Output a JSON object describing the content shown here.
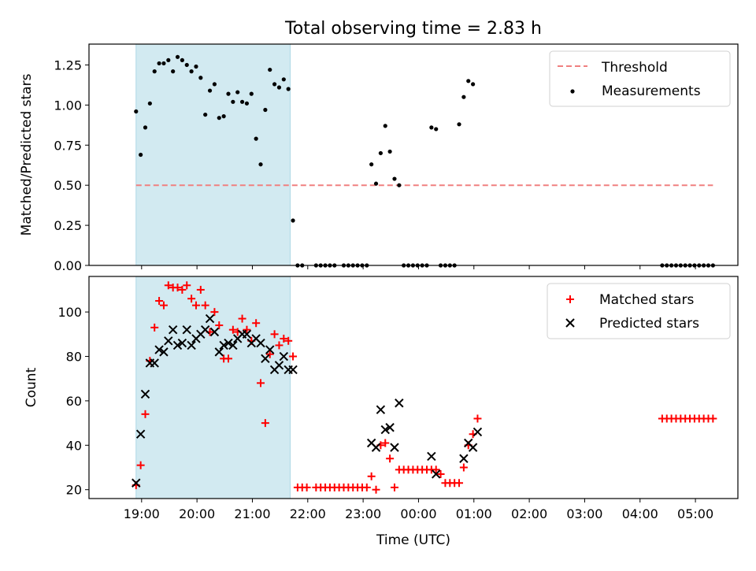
{
  "title": "Total observing time = 2.83 h",
  "colors": {
    "threshold": "#f08080",
    "matched": "#ff0000",
    "predicted": "#000000",
    "measurements": "#000000",
    "shade": "#add8e6"
  },
  "chart_data": [
    {
      "type": "scatter",
      "title": "Total observing time = 2.83 h",
      "ylabel": "Matched/Predicted stars",
      "xlim": [
        "18:03",
        "05:46"
      ],
      "ylim": [
        0,
        1.38
      ],
      "y_ticks": [
        "0.00",
        "0.25",
        "0.50",
        "0.75",
        "1.00",
        "1.25"
      ],
      "x_ticks": [
        "19:00",
        "20:00",
        "21:00",
        "22:00",
        "23:00",
        "00:00",
        "01:00",
        "02:00",
        "03:00",
        "04:00",
        "05:00"
      ],
      "shaded_interval": [
        "18:54",
        "21:41"
      ],
      "legend": {
        "position": "upper right",
        "entries": [
          "Threshold",
          "Measurements"
        ]
      },
      "series": [
        {
          "name": "Threshold",
          "marker": "dashed-line",
          "points": [
            [
              "18:54",
              0.5
            ],
            [
              "05:19",
              0.5
            ]
          ]
        },
        {
          "name": "Measurements",
          "marker": "dot",
          "points": [
            [
              "18:54",
              0.96
            ],
            [
              "18:59",
              0.69
            ],
            [
              "19:04",
              0.86
            ],
            [
              "19:09",
              1.01
            ],
            [
              "19:14",
              1.21
            ],
            [
              "19:19",
              1.26
            ],
            [
              "19:24",
              1.26
            ],
            [
              "19:29",
              1.28
            ],
            [
              "19:34",
              1.21
            ],
            [
              "19:39",
              1.3
            ],
            [
              "19:44",
              1.28
            ],
            [
              "19:49",
              1.25
            ],
            [
              "19:54",
              1.21
            ],
            [
              "19:59",
              1.24
            ],
            [
              "20:04",
              1.17
            ],
            [
              "20:09",
              0.94
            ],
            [
              "20:14",
              1.09
            ],
            [
              "20:19",
              1.13
            ],
            [
              "20:24",
              0.92
            ],
            [
              "20:29",
              0.93
            ],
            [
              "20:34",
              1.07
            ],
            [
              "20:39",
              1.02
            ],
            [
              "20:44",
              1.08
            ],
            [
              "20:49",
              1.02
            ],
            [
              "20:54",
              1.01
            ],
            [
              "20:59",
              1.07
            ],
            [
              "21:04",
              0.79
            ],
            [
              "21:09",
              0.63
            ],
            [
              "21:14",
              0.97
            ],
            [
              "21:19",
              1.22
            ],
            [
              "21:24",
              1.13
            ],
            [
              "21:29",
              1.11
            ],
            [
              "21:34",
              1.16
            ],
            [
              "21:39",
              1.1
            ],
            [
              "21:44",
              0.28
            ],
            [
              "21:49",
              0.0
            ],
            [
              "21:54",
              0.0
            ],
            [
              "22:09",
              0.0
            ],
            [
              "22:14",
              0.0
            ],
            [
              "22:19",
              0.0
            ],
            [
              "22:24",
              0.0
            ],
            [
              "22:29",
              0.0
            ],
            [
              "22:39",
              0.0
            ],
            [
              "22:44",
              0.0
            ],
            [
              "22:49",
              0.0
            ],
            [
              "22:54",
              0.0
            ],
            [
              "22:59",
              0.0
            ],
            [
              "23:04",
              0.0
            ],
            [
              "23:09",
              0.63
            ],
            [
              "23:14",
              0.51
            ],
            [
              "23:19",
              0.7
            ],
            [
              "23:24",
              0.87
            ],
            [
              "23:29",
              0.71
            ],
            [
              "23:34",
              0.54
            ],
            [
              "23:39",
              0.5
            ],
            [
              "23:44",
              0.0
            ],
            [
              "23:49",
              0.0
            ],
            [
              "23:54",
              0.0
            ],
            [
              "23:59",
              0.0
            ],
            [
              "00:04",
              0.0
            ],
            [
              "00:09",
              0.0
            ],
            [
              "00:14",
              0.86
            ],
            [
              "00:19",
              0.85
            ],
            [
              "00:24",
              0.0
            ],
            [
              "00:29",
              0.0
            ],
            [
              "00:34",
              0.0
            ],
            [
              "00:39",
              0.0
            ],
            [
              "00:44",
              0.88
            ],
            [
              "00:49",
              1.05
            ],
            [
              "00:54",
              1.15
            ],
            [
              "00:59",
              1.13
            ],
            [
              "04:24",
              0.0
            ],
            [
              "04:29",
              0.0
            ],
            [
              "04:34",
              0.0
            ],
            [
              "04:39",
              0.0
            ],
            [
              "04:44",
              0.0
            ],
            [
              "04:49",
              0.0
            ],
            [
              "04:54",
              0.0
            ],
            [
              "04:59",
              0.0
            ],
            [
              "05:04",
              0.0
            ],
            [
              "05:09",
              0.0
            ],
            [
              "05:14",
              0.0
            ],
            [
              "05:19",
              0.0
            ]
          ]
        }
      ]
    },
    {
      "type": "scatter",
      "xlabel": "Time (UTC)",
      "ylabel": "Count",
      "xlim": [
        "18:03",
        "05:46"
      ],
      "ylim": [
        16,
        116
      ],
      "y_ticks": [
        "20",
        "40",
        "60",
        "80",
        "100"
      ],
      "x_ticks": [
        "19:00",
        "20:00",
        "21:00",
        "22:00",
        "23:00",
        "00:00",
        "01:00",
        "02:00",
        "03:00",
        "04:00",
        "05:00"
      ],
      "shaded_interval": [
        "18:54",
        "21:41"
      ],
      "legend": {
        "position": "upper right",
        "entries": [
          "Matched stars",
          "Predicted stars"
        ]
      },
      "series": [
        {
          "name": "Matched stars",
          "marker": "plus",
          "points": [
            [
              "18:54",
              22
            ],
            [
              "18:59",
              31
            ],
            [
              "19:04",
              54
            ],
            [
              "19:09",
              78
            ],
            [
              "19:14",
              93
            ],
            [
              "19:19",
              105
            ],
            [
              "19:24",
              103
            ],
            [
              "19:29",
              112
            ],
            [
              "19:34",
              111
            ],
            [
              "19:39",
              111
            ],
            [
              "19:44",
              110
            ],
            [
              "19:49",
              112
            ],
            [
              "19:54",
              106
            ],
            [
              "19:59",
              103
            ],
            [
              "20:04",
              110
            ],
            [
              "20:09",
              103
            ],
            [
              "20:14",
              91
            ],
            [
              "20:19",
              100
            ],
            [
              "20:24",
              94
            ],
            [
              "20:29",
              79
            ],
            [
              "20:34",
              79
            ],
            [
              "20:39",
              92
            ],
            [
              "20:44",
              91
            ],
            [
              "20:49",
              97
            ],
            [
              "20:54",
              92
            ],
            [
              "20:59",
              87
            ],
            [
              "21:04",
              95
            ],
            [
              "21:09",
              68
            ],
            [
              "21:14",
              50
            ],
            [
              "21:19",
              81
            ],
            [
              "21:24",
              90
            ],
            [
              "21:29",
              85
            ],
            [
              "21:34",
              88
            ],
            [
              "21:39",
              87
            ],
            [
              "21:44",
              80
            ],
            [
              "21:49",
              21
            ],
            [
              "21:54",
              21
            ],
            [
              "21:59",
              21
            ],
            [
              "22:09",
              21
            ],
            [
              "22:14",
              21
            ],
            [
              "22:19",
              21
            ],
            [
              "22:24",
              21
            ],
            [
              "22:29",
              21
            ],
            [
              "22:34",
              21
            ],
            [
              "22:39",
              21
            ],
            [
              "22:44",
              21
            ],
            [
              "22:49",
              21
            ],
            [
              "22:54",
              21
            ],
            [
              "22:59",
              21
            ],
            [
              "23:04",
              21
            ],
            [
              "23:09",
              26
            ],
            [
              "23:14",
              20
            ],
            [
              "23:19",
              40
            ],
            [
              "23:24",
              41
            ],
            [
              "23:29",
              34
            ],
            [
              "23:34",
              21
            ],
            [
              "23:39",
              29
            ],
            [
              "23:44",
              29
            ],
            [
              "23:49",
              29
            ],
            [
              "23:54",
              29
            ],
            [
              "23:59",
              29
            ],
            [
              "00:04",
              29
            ],
            [
              "00:09",
              29
            ],
            [
              "00:14",
              29
            ],
            [
              "00:19",
              29
            ],
            [
              "00:24",
              27
            ],
            [
              "00:29",
              23
            ],
            [
              "00:34",
              23
            ],
            [
              "00:39",
              23
            ],
            [
              "00:44",
              23
            ],
            [
              "00:49",
              30
            ],
            [
              "00:54",
              40
            ],
            [
              "00:59",
              45
            ],
            [
              "01:04",
              52
            ],
            [
              "04:24",
              52
            ],
            [
              "04:29",
              52
            ],
            [
              "04:34",
              52
            ],
            [
              "04:39",
              52
            ],
            [
              "04:44",
              52
            ],
            [
              "04:49",
              52
            ],
            [
              "04:54",
              52
            ],
            [
              "04:59",
              52
            ],
            [
              "05:04",
              52
            ],
            [
              "05:09",
              52
            ],
            [
              "05:14",
              52
            ],
            [
              "05:19",
              52
            ]
          ]
        },
        {
          "name": "Predicted stars",
          "marker": "x",
          "points": [
            [
              "18:54",
              23
            ],
            [
              "18:59",
              45
            ],
            [
              "19:04",
              63
            ],
            [
              "19:09",
              77
            ],
            [
              "19:14",
              77
            ],
            [
              "19:19",
              83
            ],
            [
              "19:24",
              82
            ],
            [
              "19:29",
              87
            ],
            [
              "19:34",
              92
            ],
            [
              "19:39",
              85
            ],
            [
              "19:44",
              86
            ],
            [
              "19:49",
              92
            ],
            [
              "19:54",
              85
            ],
            [
              "19:59",
              88
            ],
            [
              "20:04",
              90
            ],
            [
              "20:09",
              92
            ],
            [
              "20:14",
              97
            ],
            [
              "20:19",
              91
            ],
            [
              "20:24",
              82
            ],
            [
              "20:29",
              85
            ],
            [
              "20:34",
              86
            ],
            [
              "20:39",
              85
            ],
            [
              "20:44",
              88
            ],
            [
              "20:49",
              90
            ],
            [
              "20:54",
              90
            ],
            [
              "20:59",
              86
            ],
            [
              "21:04",
              88
            ],
            [
              "21:09",
              86
            ],
            [
              "21:14",
              79
            ],
            [
              "21:19",
              83
            ],
            [
              "21:24",
              74
            ],
            [
              "21:29",
              76
            ],
            [
              "21:34",
              80
            ],
            [
              "21:39",
              74
            ],
            [
              "21:44",
              74
            ],
            [
              "23:09",
              41
            ],
            [
              "23:14",
              39
            ],
            [
              "23:19",
              56
            ],
            [
              "23:24",
              47
            ],
            [
              "23:29",
              48
            ],
            [
              "23:34",
              39
            ],
            [
              "23:39",
              59
            ],
            [
              "00:14",
              35
            ],
            [
              "00:19",
              27
            ],
            [
              "00:49",
              34
            ],
            [
              "00:54",
              41
            ],
            [
              "00:59",
              39
            ],
            [
              "01:04",
              46
            ]
          ]
        }
      ]
    }
  ]
}
